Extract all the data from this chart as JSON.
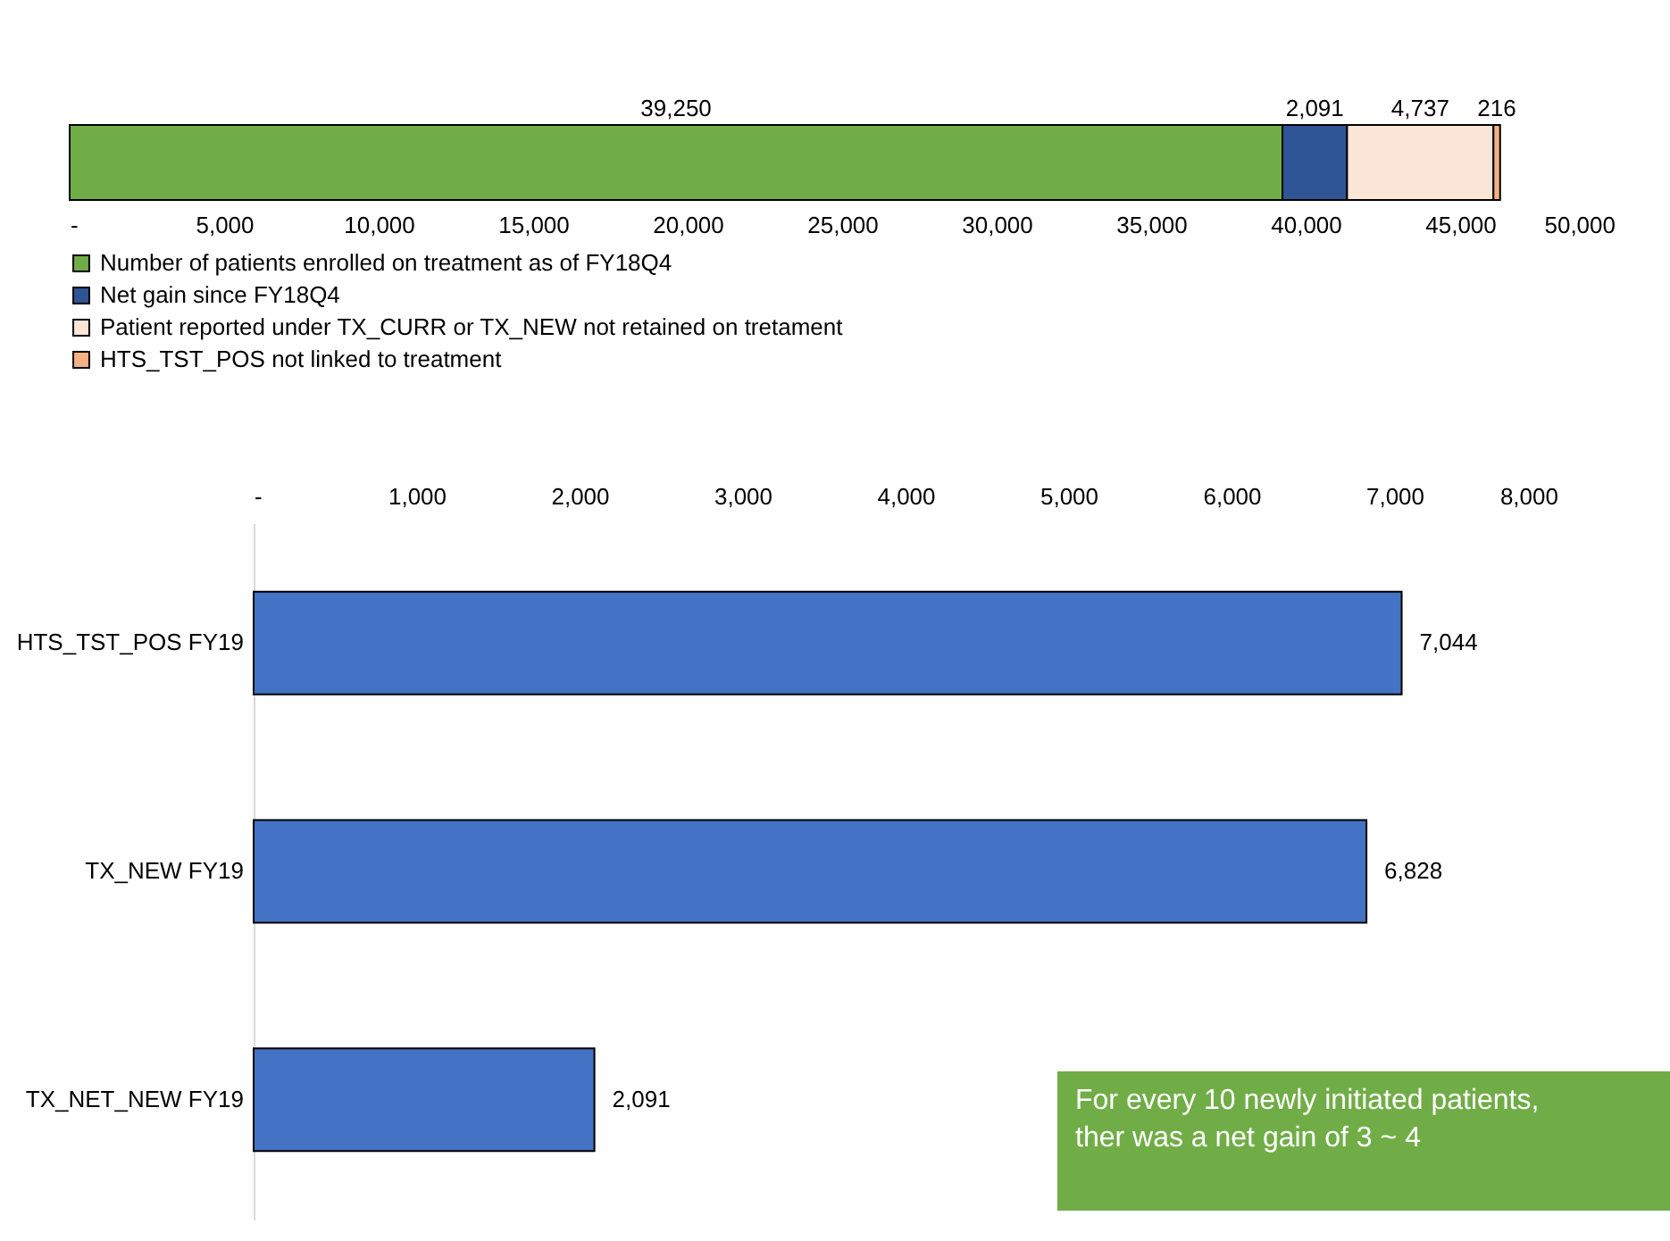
{
  "chart_data": [
    {
      "type": "bar",
      "orientation": "horizontal",
      "stacked": true,
      "categories": [
        null
      ],
      "series": [
        {
          "name": "Number of patients enrolled on treatment as of FY18Q4",
          "color": "#70ad47",
          "values": [
            39250
          ],
          "value_labels": [
            "39,250"
          ]
        },
        {
          "name": "Net gain since FY18Q4",
          "color": "#2f5597",
          "values": [
            2091
          ],
          "value_labels": [
            "2,091"
          ]
        },
        {
          "name": "Patient reported under TX_CURR or TX_NEW not retained on tretament",
          "color": "#fbe5d6",
          "values": [
            4737
          ],
          "value_labels": [
            "4,737"
          ]
        },
        {
          "name": "HTS_TST_POS not linked to treatment",
          "color": "#f4b183",
          "values": [
            216
          ],
          "value_labels": [
            "216"
          ]
        }
      ],
      "xlim": [
        0,
        50000
      ],
      "xticks": [
        {
          "value": 0,
          "label": "-"
        },
        {
          "value": 5000,
          "label": "5,000"
        },
        {
          "value": 10000,
          "label": "10,000"
        },
        {
          "value": 15000,
          "label": "15,000"
        },
        {
          "value": 20000,
          "label": "20,000"
        },
        {
          "value": 25000,
          "label": "25,000"
        },
        {
          "value": 30000,
          "label": "30,000"
        },
        {
          "value": 35000,
          "label": "35,000"
        },
        {
          "value": 40000,
          "label": "40,000"
        },
        {
          "value": 45000,
          "label": "45,000"
        },
        {
          "value": 50000,
          "label": "50,000"
        }
      ],
      "legend": "bottom",
      "tick_labels": "x",
      "grid": false
    },
    {
      "type": "bar",
      "orientation": "horizontal",
      "categories": [
        "HTS_TST_POS FY19",
        "TX_NEW FY19",
        "TX_NET_NEW FY19"
      ],
      "values": [
        7044,
        6828,
        2091
      ],
      "value_labels": [
        "7,044",
        "6,828",
        "2,091"
      ],
      "color": "#4472c4",
      "xlim": [
        0,
        8000
      ],
      "xticks": [
        {
          "value": 0,
          "label": "-"
        },
        {
          "value": 1000,
          "label": "1,000"
        },
        {
          "value": 2000,
          "label": "2,000"
        },
        {
          "value": 3000,
          "label": "3,000"
        },
        {
          "value": 4000,
          "label": "4,000"
        },
        {
          "value": 5000,
          "label": "5,000"
        },
        {
          "value": 6000,
          "label": "6,000"
        },
        {
          "value": 7000,
          "label": "7,000"
        },
        {
          "value": 8000,
          "label": "8,000"
        }
      ],
      "grid": false,
      "annotations": [
        "For every 10 newly initiated patients,\nther was a net gain of 3 ~ 4"
      ]
    }
  ]
}
